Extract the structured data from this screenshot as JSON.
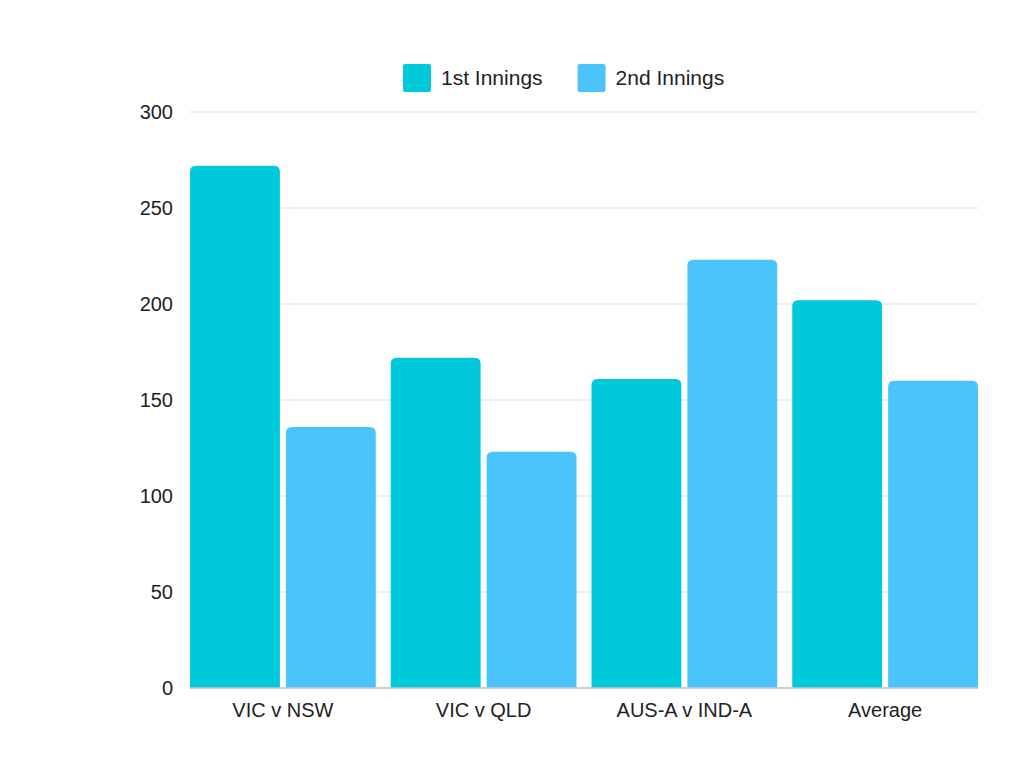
{
  "chart_data": {
    "type": "bar",
    "categories": [
      "VIC v NSW",
      "VIC v QLD",
      "AUS-A v IND-A",
      "Average"
    ],
    "series": [
      {
        "name": "1st Innings",
        "color": "#00c9db",
        "values": [
          272,
          172,
          161,
          202
        ]
      },
      {
        "name": "2nd Innings",
        "color": "#4bc4fc",
        "values": [
          136,
          123,
          223,
          160
        ]
      }
    ],
    "ylim": [
      0,
      300
    ],
    "yticks": [
      0,
      50,
      100,
      150,
      200,
      250,
      300
    ],
    "grid": true,
    "legend": "top"
  }
}
